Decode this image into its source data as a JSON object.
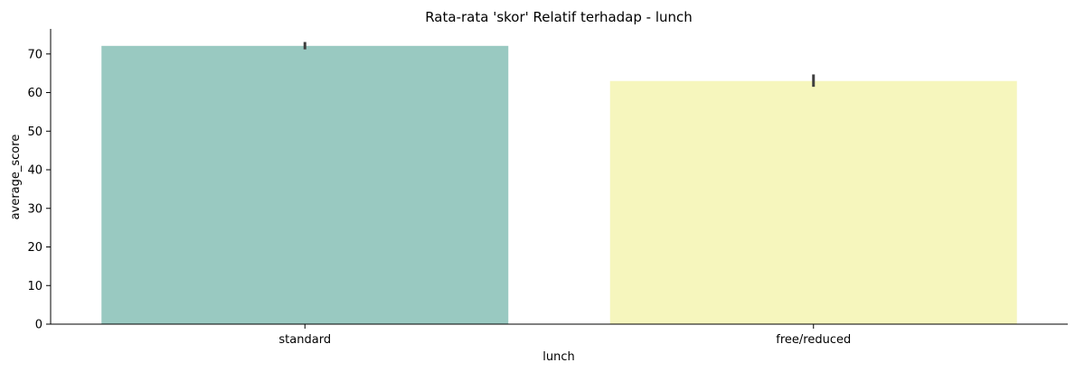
{
  "chart_data": {
    "type": "bar",
    "title": "Rata-rata 'skor' Relatif terhadap - lunch",
    "xlabel": "lunch",
    "ylabel": "average_score",
    "categories": [
      "standard",
      "free/reduced"
    ],
    "values": [
      72.1,
      63.0
    ],
    "error_bars": [
      {
        "low": 71.2,
        "high": 73.1
      },
      {
        "low": 61.5,
        "high": 64.7
      }
    ],
    "colors": [
      "#99c9c1",
      "#f6f6bd"
    ],
    "error_color": "#3f3f3f",
    "ylim": [
      0,
      76.5
    ],
    "yticks": [
      0,
      10,
      20,
      30,
      40,
      50,
      60,
      70
    ],
    "grid": false,
    "legend": "none"
  }
}
